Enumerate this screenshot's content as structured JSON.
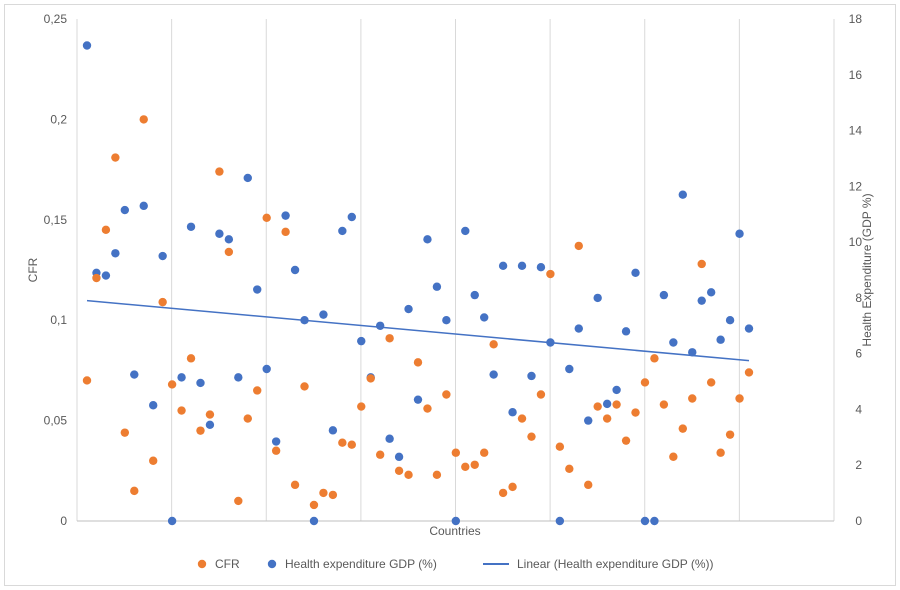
{
  "chart_data": {
    "type": "scatter",
    "title": "",
    "xlabel": "Countries",
    "ylabel_left": "CFR",
    "ylabel_right": "Health Expenditure (GDP %)",
    "y_left_lim": [
      0,
      0.25
    ],
    "y_right_lim": [
      0,
      18
    ],
    "y_left_ticks": [
      {
        "value": 0,
        "label": "0"
      },
      {
        "value": 0.05,
        "label": "0,05"
      },
      {
        "value": 0.1,
        "label": "0,1"
      },
      {
        "value": 0.15,
        "label": "0,15"
      },
      {
        "value": 0.2,
        "label": "0,2"
      },
      {
        "value": 0.25,
        "label": "0,25"
      }
    ],
    "y_right_ticks": [
      {
        "value": 0,
        "label": "0"
      },
      {
        "value": 2,
        "label": "2"
      },
      {
        "value": 4,
        "label": "4"
      },
      {
        "value": 6,
        "label": "6"
      },
      {
        "value": 8,
        "label": "8"
      },
      {
        "value": 10,
        "label": "10"
      },
      {
        "value": 12,
        "label": "12"
      },
      {
        "value": 14,
        "label": "14"
      },
      {
        "value": 16,
        "label": "16"
      },
      {
        "value": 18,
        "label": "18"
      }
    ],
    "x_count": 71,
    "series": [
      {
        "name": "CFR",
        "axis": "left",
        "color": "#ED7D31",
        "values": [
          0.07,
          0.121,
          0.145,
          0.181,
          0.044,
          0.015,
          0.2,
          0.03,
          0.109,
          0.068,
          0.055,
          0.081,
          0.045,
          0.053,
          0.174,
          0.134,
          0.01,
          0.051,
          0.065,
          0.151,
          0.035,
          0.144,
          0.018,
          0.067,
          0.008,
          0.014,
          0.013,
          0.039,
          0.038,
          0.057,
          0.071,
          0.033,
          0.091,
          0.025,
          0.023,
          0.079,
          0.056,
          0.023,
          0.063,
          0.034,
          0.027,
          0.028,
          0.034,
          0.088,
          0.014,
          0.017,
          0.051,
          0.042,
          0.063,
          0.123,
          0.037,
          0.026,
          0.137,
          0.018,
          0.057,
          0.051,
          0.058,
          0.04,
          0.054,
          0.069,
          0.081,
          0.058,
          0.032,
          0.046,
          0.061,
          0.128,
          0.069,
          0.034,
          0.043,
          0.061,
          0.074
        ]
      },
      {
        "name": "Health expenditure GDP (%)",
        "axis": "right",
        "color": "#4472C4",
        "values": [
          17.05,
          8.9,
          8.8,
          9.6,
          11.15,
          5.25,
          11.3,
          4.15,
          9.5,
          0,
          5.15,
          10.55,
          4.95,
          3.45,
          10.3,
          10.1,
          5.15,
          12.3,
          8.3,
          5.45,
          2.85,
          10.95,
          9.0,
          7.2,
          0,
          7.4,
          3.25,
          10.4,
          10.9,
          6.45,
          5.15,
          7.0,
          2.95,
          2.3,
          7.6,
          4.35,
          10.1,
          8.4,
          7.2,
          0,
          10.4,
          8.1,
          7.3,
          5.25,
          9.15,
          3.9,
          9.15,
          5.2,
          9.1,
          6.4,
          0,
          5.45,
          6.9,
          3.6,
          8.0,
          4.2,
          4.7,
          6.8,
          8.9,
          0,
          0,
          8.1,
          6.4,
          11.7,
          6.05,
          7.9,
          8.2,
          6.5,
          7.2,
          10.3,
          6.9
        ]
      }
    ],
    "trendline": {
      "name": "Linear (Health expenditure GDP (%))",
      "axis": "right",
      "color": "#4472C4",
      "start": 7.9,
      "end": 5.75
    },
    "legend": {
      "position": "bottom",
      "items": [
        {
          "label": "CFR",
          "color": "#ED7D31",
          "marker": "circle"
        },
        {
          "label": "Health expenditure GDP (%)",
          "color": "#4472C4",
          "marker": "circle"
        },
        {
          "label": "Linear (Health expenditure GDP (%))",
          "color": "#4472C4",
          "marker": "line"
        }
      ]
    },
    "grid": "vertical"
  }
}
